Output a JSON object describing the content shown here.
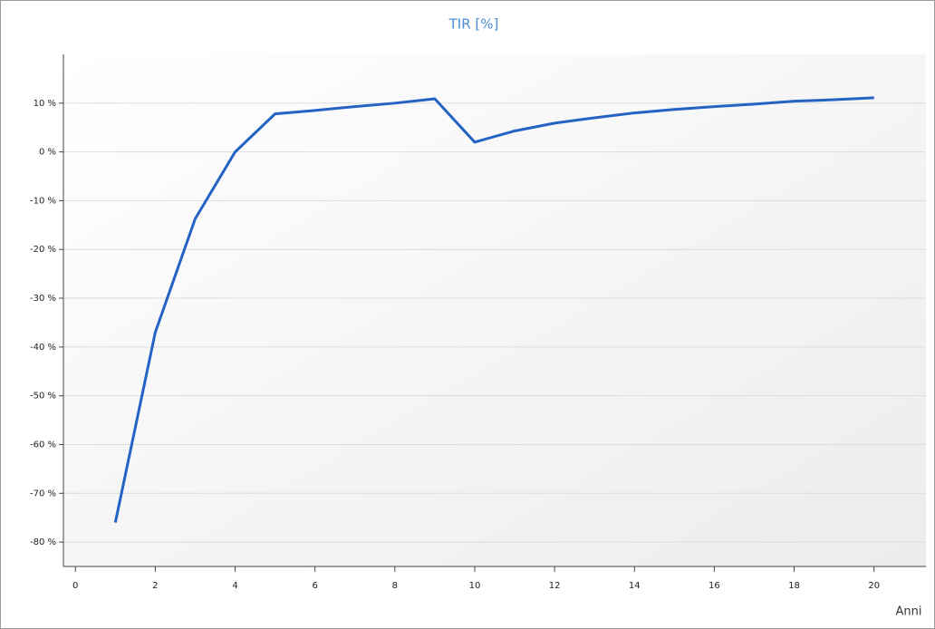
{
  "chart_data": {
    "type": "line",
    "title": "TIR [%]",
    "x_label": "Anni",
    "x": [
      1,
      2,
      3,
      4,
      5,
      6,
      7,
      8,
      9,
      10,
      11,
      12,
      13,
      14,
      15,
      16,
      17,
      18,
      19,
      20
    ],
    "series": [
      {
        "name": "TIR",
        "color": "#2462c4",
        "values": [
          -76,
          -37,
          -13.7,
          0,
          7.8,
          8.5,
          9.3,
          10,
          10.9,
          2,
          4.3,
          5.9,
          7,
          8,
          8.7,
          9.3,
          9.8,
          10.4,
          10.7,
          11.1
        ]
      }
    ],
    "xlim": [
      -0.3,
      21.3
    ],
    "xticks": [
      0,
      2,
      4,
      6,
      8,
      10,
      12,
      14,
      16,
      18,
      20
    ],
    "ylim": [
      -85,
      20
    ],
    "yticks": [
      {
        "value": 10,
        "label": "10 %"
      },
      {
        "value": 0,
        "label": "0 %"
      },
      {
        "value": -10,
        "label": "-10 %"
      },
      {
        "value": -20,
        "label": "-20 %"
      },
      {
        "value": -30,
        "label": "-30 %"
      },
      {
        "value": -40,
        "label": "-40 %"
      },
      {
        "value": -50,
        "label": "-50 %"
      },
      {
        "value": -60,
        "label": "-60 %"
      },
      {
        "value": -70,
        "label": "-70 %"
      },
      {
        "value": -80,
        "label": "-80 %"
      }
    ],
    "grid": true
  }
}
